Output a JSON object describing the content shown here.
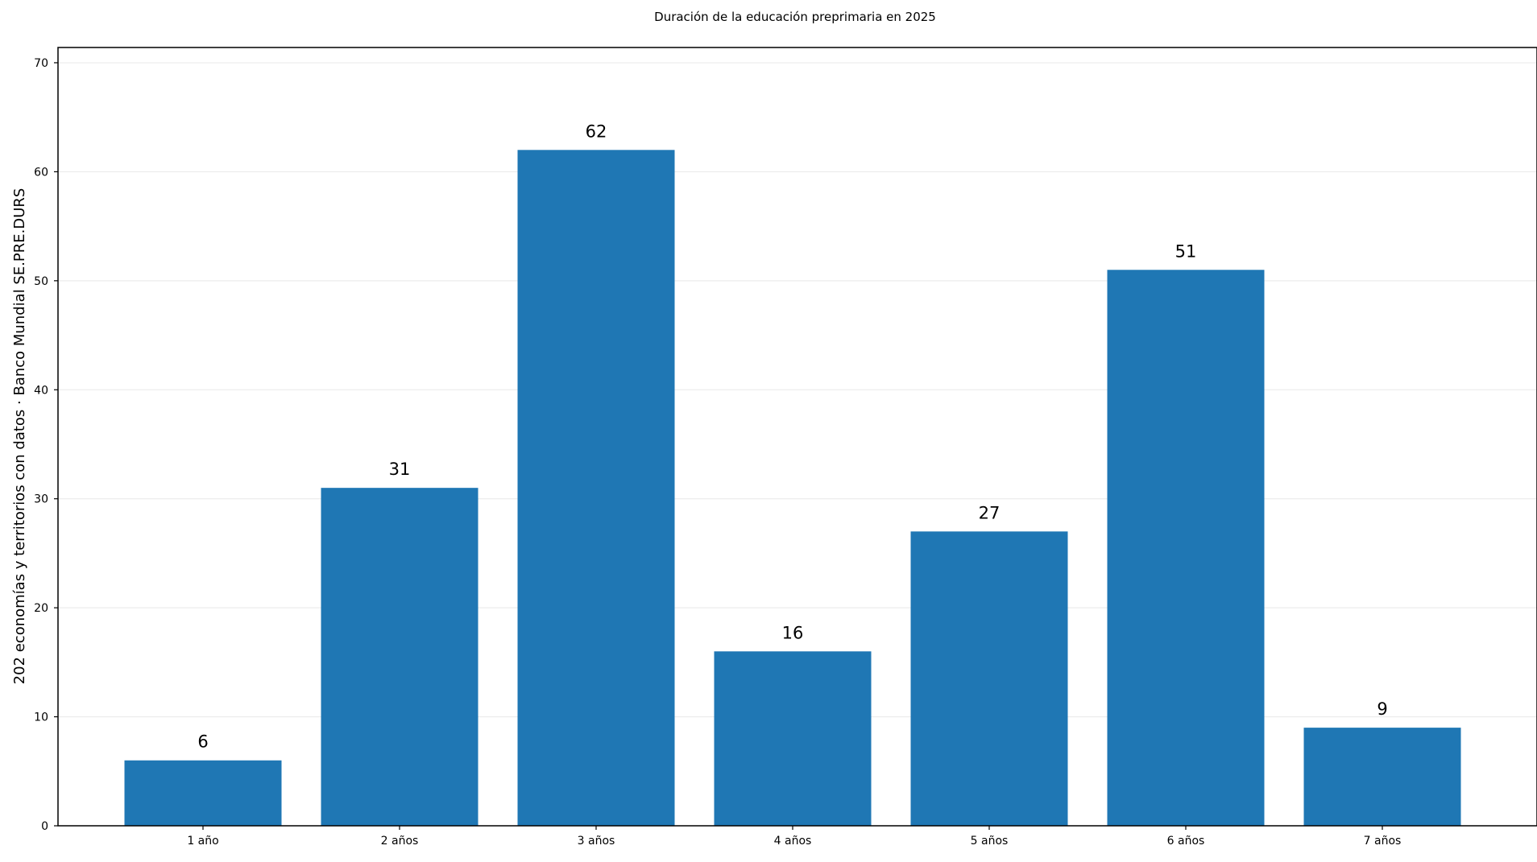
{
  "chart_data": {
    "type": "bar",
    "title": "Duración de la educación preprimaria en 2025",
    "xlabel": "",
    "ylabel": "202 economías y territorios con datos · Banco Mundial SE.PRE.DURS",
    "categories": [
      "1 año",
      "2 años",
      "3 años",
      "4 años",
      "5 años",
      "6 años",
      "7 años"
    ],
    "values": [
      6,
      31,
      62,
      16,
      27,
      51,
      9
    ],
    "data_labels": [
      "6",
      "31",
      "62",
      "16",
      "27",
      "51",
      "9"
    ],
    "ylim": [
      0,
      71.4
    ],
    "yticks": [
      0,
      10,
      20,
      30,
      40,
      50,
      60,
      70
    ],
    "ytick_labels": [
      "0",
      "10",
      "20",
      "30",
      "40",
      "50",
      "60",
      "70"
    ],
    "grid": true,
    "legend": "none",
    "bar_color": "#1f77b4"
  }
}
